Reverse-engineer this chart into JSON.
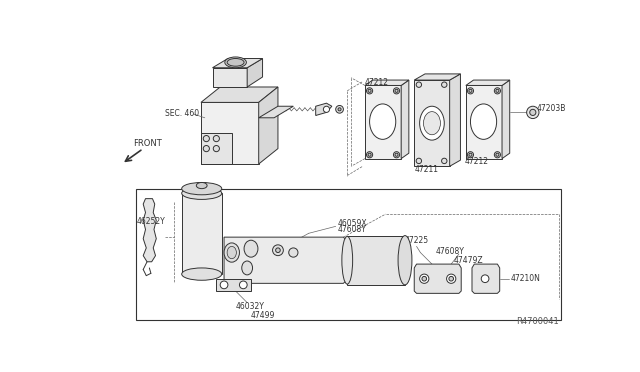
{
  "bg_color": "#ffffff",
  "fig_width": 6.4,
  "fig_height": 3.72,
  "dpi": 100,
  "watermark": "R4700041",
  "line_color": "#333333",
  "mid_color": "#666666",
  "fill_light": "#f2f2f2",
  "fill_mid": "#e8e8e8",
  "fill_dark": "#d8d8d8",
  "labels": {
    "SEC460": "SEC. 460",
    "FRONT": "FRONT",
    "p47212_1": "47212",
    "p47212_2": "47212",
    "p47211": "47211",
    "p47203": "47203B",
    "p46252": "46252Y",
    "p46059": "46059X",
    "p47608_1": "47608Y",
    "p47608_2": "47608Y",
    "p47225": "47225",
    "p47479": "47479Z",
    "p47210": "47210N",
    "p46032": "46032Y",
    "p47499": "47499"
  }
}
